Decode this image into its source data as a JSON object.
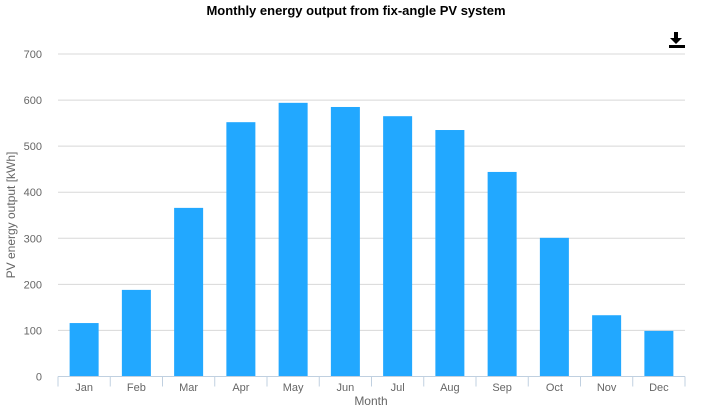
{
  "chart_data": {
    "type": "bar",
    "title": "Monthly energy output from fix-angle PV system",
    "xlabel": "Month",
    "ylabel": "PV energy output [kWh]",
    "categories": [
      "Jan",
      "Feb",
      "Mar",
      "Apr",
      "May",
      "Jun",
      "Jul",
      "Aug",
      "Sep",
      "Oct",
      "Nov",
      "Dec"
    ],
    "values": [
      116,
      188,
      366,
      552,
      594,
      585,
      565,
      535,
      444,
      301,
      133,
      99
    ],
    "ylim": [
      0,
      700
    ],
    "yticks": [
      0,
      100,
      200,
      300,
      400,
      500,
      600,
      700
    ],
    "grid": true,
    "bar_color": "#22a8ff"
  },
  "toolbar": {
    "download_icon": "download-icon"
  }
}
